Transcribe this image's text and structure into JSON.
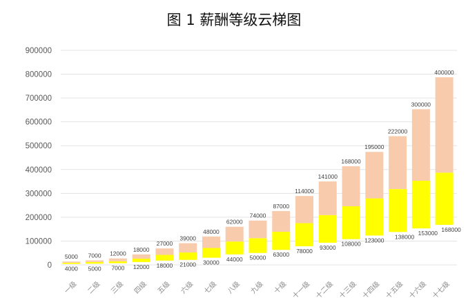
{
  "chart_data": {
    "type": "bar",
    "stacked": true,
    "title": "图 1  薪酬等级云梯图",
    "xlabel": "",
    "ylabel": "",
    "ylim": [
      0,
      900000
    ],
    "yticks": [
      "0",
      "100000",
      "200000",
      "300000",
      "400000",
      "500000",
      "600000",
      "700000",
      "800000",
      "900000"
    ],
    "grid": true,
    "categories": [
      "一级",
      "二级",
      "三级",
      "四级",
      "五级",
      "六级",
      "七级",
      "八级",
      "九级",
      "十级",
      "十一级",
      "十二级",
      "十三级",
      "十四级",
      "十五级",
      "十六级",
      "十七级"
    ],
    "series": [
      {
        "role": "invisible-base",
        "color": "transparent",
        "values": [
          4000,
          5000,
          7000,
          12000,
          18000,
          21000,
          30000,
          44000,
          50000,
          63000,
          78000,
          93000,
          108000,
          123000,
          138000,
          153000,
          168000
        ]
      },
      {
        "role": "middle",
        "color": "#FFFF00",
        "values": [
          5000,
          7000,
          8000,
          14000,
          24000,
          31000,
          41000,
          54000,
          62000,
          76000,
          97000,
          116000,
          138000,
          156000,
          180000,
          200000,
          219000
        ]
      },
      {
        "role": "top",
        "color": "#F8CBAD",
        "values": [
          5000,
          7000,
          12000,
          18000,
          27000,
          39000,
          48000,
          62000,
          74000,
          87000,
          114000,
          141000,
          168000,
          195000,
          222000,
          300000,
          400000
        ]
      }
    ],
    "top_labels": [
      "5000",
      "7000",
      "12000",
      "18000",
      "27000",
      "39000",
      "48000",
      "62000",
      "74000",
      "87000",
      "114000",
      "141000",
      "168000",
      "195000",
      "222000",
      "300000",
      "400000"
    ],
    "bottom_labels": [
      "4000",
      "5000",
      "7000",
      "12000",
      "18000",
      "21000",
      "30000",
      "44000",
      "50000",
      "63000",
      "78000",
      "93000",
      "108000",
      "123000",
      "138000",
      "153000",
      "168000"
    ]
  },
  "colors": {
    "grid": "#E3E3E3",
    "yellow": "#FFFF00",
    "peach": "#F8CBAD"
  }
}
